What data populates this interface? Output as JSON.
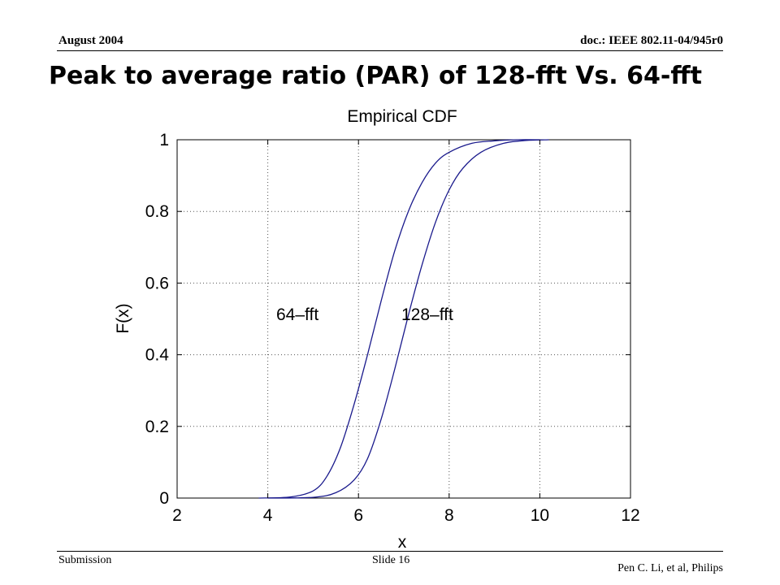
{
  "header": {
    "date": "August 2004",
    "doc_id": "doc.: IEEE 802.11-04/945r0"
  },
  "slide": {
    "title": "Peak to average ratio (PAR) of 128-fft Vs. 64-fft"
  },
  "footer": {
    "left": "Submission",
    "center": "Slide 16",
    "right": "Pen C. Li, et al, Philips"
  },
  "colors": {
    "line": "#1a1a8c",
    "grid": "#555555",
    "axis": "#000000"
  },
  "chart_data": {
    "type": "line",
    "title": "Empirical CDF",
    "xlabel": "x",
    "ylabel": "F(x)",
    "xlim": [
      2,
      12
    ],
    "ylim": [
      0,
      1
    ],
    "xticks": [
      2,
      4,
      6,
      8,
      10,
      12
    ],
    "yticks": [
      0,
      0.2,
      0.4,
      0.6,
      0.8,
      1
    ],
    "grid": true,
    "series": [
      {
        "name": "64–fft",
        "x": [
          3.8,
          4.5,
          5.0,
          5.3,
          5.6,
          5.9,
          6.2,
          6.5,
          6.8,
          7.1,
          7.4,
          7.7,
          8.0,
          8.5,
          9.0,
          9.5,
          10.0
        ],
        "y": [
          0.0,
          0.003,
          0.02,
          0.06,
          0.14,
          0.26,
          0.4,
          0.55,
          0.69,
          0.8,
          0.88,
          0.935,
          0.965,
          0.99,
          0.997,
          1.0,
          1.0
        ]
      },
      {
        "name": "128–fft",
        "x": [
          4.0,
          5.0,
          5.5,
          5.9,
          6.2,
          6.5,
          6.8,
          7.1,
          7.4,
          7.7,
          8.0,
          8.3,
          8.7,
          9.2,
          9.7,
          10.2
        ],
        "y": [
          0.0,
          0.002,
          0.015,
          0.05,
          0.11,
          0.22,
          0.36,
          0.51,
          0.65,
          0.77,
          0.86,
          0.92,
          0.965,
          0.99,
          0.998,
          1.0
        ]
      }
    ]
  }
}
